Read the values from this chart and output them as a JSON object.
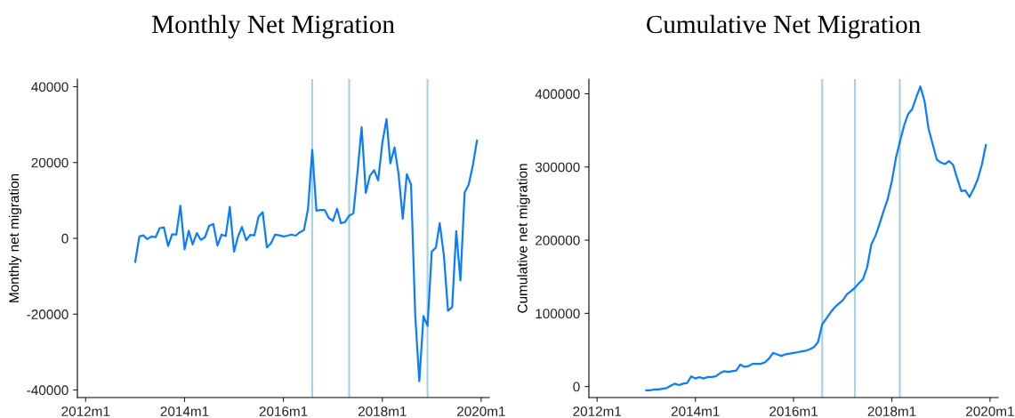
{
  "chart_data": [
    {
      "type": "line",
      "title": "Monthly Net Migration",
      "ylabel": "Monthly net migration",
      "color": "#0a7dff",
      "x": [
        "2013-01",
        "2013-02",
        "2013-03",
        "2013-04",
        "2013-05",
        "2013-06",
        "2013-07",
        "2013-08",
        "2013-09",
        "2013-10",
        "2013-11",
        "2013-12",
        "2014-01",
        "2014-02",
        "2014-03",
        "2014-04",
        "2014-05",
        "2014-06",
        "2014-07",
        "2014-08",
        "2014-09",
        "2014-10",
        "2014-11",
        "2014-12",
        "2015-01",
        "2015-02",
        "2015-03",
        "2015-04",
        "2015-05",
        "2015-06",
        "2015-07",
        "2015-08",
        "2015-09",
        "2015-10",
        "2015-11",
        "2015-12",
        "2016-01",
        "2016-02",
        "2016-03",
        "2016-04",
        "2016-05",
        "2016-06",
        "2016-07",
        "2016-08",
        "2016-09",
        "2016-10",
        "2016-11",
        "2016-12",
        "2017-01",
        "2017-02",
        "2017-03",
        "2017-04",
        "2017-05",
        "2017-06",
        "2017-07",
        "2017-08",
        "2017-09",
        "2017-10",
        "2017-11",
        "2017-12",
        "2018-01",
        "2018-02",
        "2018-03",
        "2018-04",
        "2018-05",
        "2018-06",
        "2018-07",
        "2018-08",
        "2018-09",
        "2018-10",
        "2018-11",
        "2018-12",
        "2019-01",
        "2019-02",
        "2019-03",
        "2019-04",
        "2019-05",
        "2019-06",
        "2019-07",
        "2019-08",
        "2019-09",
        "2019-10",
        "2019-11",
        "2019-12"
      ],
      "values": [
        -6200,
        500,
        800,
        -200,
        500,
        300,
        2700,
        2900,
        -2000,
        1100,
        1000,
        8600,
        -2900,
        2000,
        -1600,
        1400,
        -400,
        300,
        3300,
        3800,
        -1900,
        1000,
        600,
        8300,
        -3500,
        600,
        3000,
        -500,
        900,
        800,
        5700,
        6900,
        -2400,
        -1300,
        1000,
        800,
        500,
        700,
        1000,
        700,
        1600,
        2200,
        7800,
        23300,
        7300,
        7500,
        7500,
        5400,
        4600,
        7800,
        4000,
        4300,
        6000,
        6600,
        17300,
        29300,
        12000,
        16500,
        18000,
        15300,
        25200,
        31500,
        19800,
        24000,
        16900,
        5200,
        16900,
        14200,
        -20300,
        -37700,
        -20500,
        -23100,
        -3500,
        -2400,
        4000,
        -4600,
        -19100,
        -18100,
        1900,
        -11100,
        12100,
        14200,
        19300,
        25800
      ],
      "xlim": [
        "2011-11",
        "2020-03"
      ],
      "xticks": [
        {
          "value": "2012-01",
          "label": "2012m1"
        },
        {
          "value": "2014-01",
          "label": "2014m1"
        },
        {
          "value": "2016-01",
          "label": "2016m1"
        },
        {
          "value": "2018-01",
          "label": "2018m1"
        },
        {
          "value": "2020-01",
          "label": "2020m1"
        }
      ],
      "ylim": [
        -42000,
        42000
      ],
      "yticks": [
        -40000,
        -20000,
        0,
        20000,
        40000
      ],
      "ref_lines": [
        {
          "axis": "x",
          "value": "2016-08",
          "color": "#a6d3e0"
        },
        {
          "axis": "x",
          "value": "2017-05",
          "color": "#a6d3e0"
        },
        {
          "axis": "x",
          "value": "2018-12",
          "color": "#a6d3e0"
        }
      ]
    },
    {
      "type": "line",
      "title": "Cumulative Net Migration",
      "ylabel": "Cumulative net migration",
      "color": "#0a7dff",
      "x": [
        "2013-01",
        "2013-02",
        "2013-03",
        "2013-04",
        "2013-05",
        "2013-06",
        "2013-07",
        "2013-08",
        "2013-09",
        "2013-10",
        "2013-11",
        "2013-12",
        "2014-01",
        "2014-02",
        "2014-03",
        "2014-04",
        "2014-05",
        "2014-06",
        "2014-07",
        "2014-08",
        "2014-09",
        "2014-10",
        "2014-11",
        "2014-12",
        "2015-01",
        "2015-02",
        "2015-03",
        "2015-04",
        "2015-05",
        "2015-06",
        "2015-07",
        "2015-08",
        "2015-09",
        "2015-10",
        "2015-11",
        "2015-12",
        "2016-01",
        "2016-02",
        "2016-03",
        "2016-04",
        "2016-05",
        "2016-06",
        "2016-07",
        "2016-08",
        "2016-09",
        "2016-10",
        "2016-11",
        "2016-12",
        "2017-01",
        "2017-02",
        "2017-03",
        "2017-04",
        "2017-05",
        "2017-06",
        "2017-07",
        "2017-08",
        "2017-09",
        "2017-10",
        "2017-11",
        "2017-12",
        "2018-01",
        "2018-02",
        "2018-03",
        "2018-04",
        "2018-05",
        "2018-06",
        "2018-07",
        "2018-08",
        "2018-09",
        "2018-10",
        "2018-11",
        "2018-12",
        "2019-01",
        "2019-02",
        "2019-03",
        "2019-04",
        "2019-05",
        "2019-06",
        "2019-07",
        "2019-08",
        "2019-09",
        "2019-10",
        "2019-11",
        "2019-12"
      ],
      "values": [
        -5000,
        -5000,
        -4000,
        -4000,
        -3000,
        -2000,
        1000,
        4000,
        2000,
        4000,
        5000,
        14000,
        11000,
        13000,
        11000,
        13000,
        13000,
        14000,
        18000,
        21000,
        20000,
        21000,
        22000,
        30000,
        27000,
        28000,
        31000,
        31000,
        31000,
        33000,
        38000,
        46000,
        44000,
        42000,
        44000,
        45000,
        46000,
        47000,
        48000,
        49000,
        51000,
        54000,
        61000,
        85000,
        93000,
        101000,
        108000,
        113000,
        118000,
        126000,
        130000,
        135000,
        141000,
        147000,
        163000,
        194000,
        206000,
        222000,
        240000,
        256000,
        281000,
        313000,
        334000,
        356000,
        372000,
        379000,
        395000,
        410000,
        390000,
        352000,
        331000,
        310000,
        306000,
        304000,
        308000,
        303000,
        285000,
        267000,
        268000,
        259000,
        270000,
        283000,
        303000,
        330000
      ],
      "xlim": [
        "2011-11",
        "2020-03"
      ],
      "xticks": [
        {
          "value": "2012-01",
          "label": "2012m1"
        },
        {
          "value": "2014-01",
          "label": "2014m1"
        },
        {
          "value": "2016-01",
          "label": "2016m1"
        },
        {
          "value": "2018-01",
          "label": "2018m1"
        },
        {
          "value": "2020-01",
          "label": "2020m1"
        }
      ],
      "ylim": [
        -15000,
        420000
      ],
      "yticks": [
        0,
        100000,
        200000,
        300000,
        400000
      ],
      "ref_lines": [
        {
          "axis": "x",
          "value": "2016-08",
          "color": "#a6d3e0"
        },
        {
          "axis": "x",
          "value": "2017-04",
          "color": "#a6d3e0"
        },
        {
          "axis": "x",
          "value": "2018-03",
          "color": "#a6d3e0"
        }
      ]
    }
  ]
}
